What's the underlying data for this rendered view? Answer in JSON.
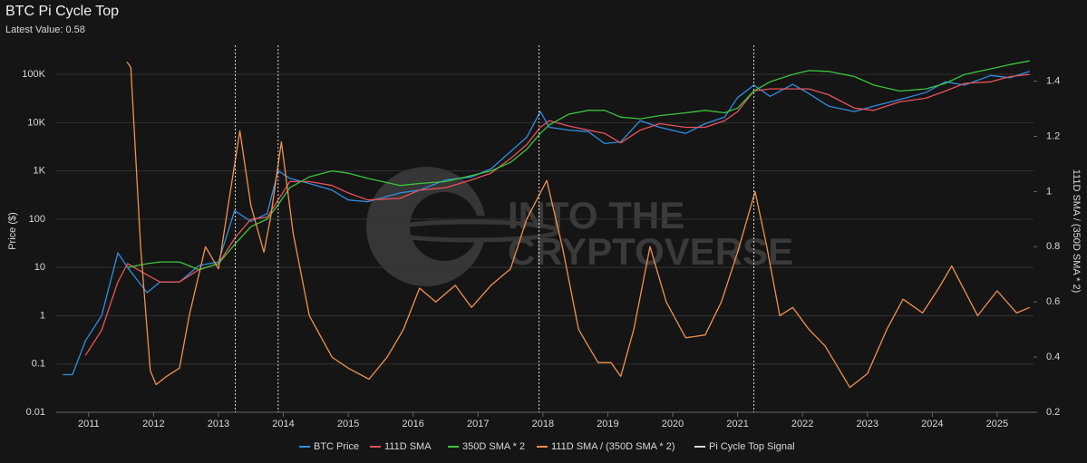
{
  "chart_data": {
    "type": "line",
    "title": "BTC Pi Cycle Top",
    "subtitle": "Latest Value: 0.58",
    "y_label": "Price ($)",
    "y2_label": "111D SMA / (350D SMA * 2)",
    "watermark": [
      "INTO THE",
      "CRYPTOVERSE"
    ],
    "log_y": true,
    "grid": true,
    "legend": "bottom",
    "xlim": [
      2010.5,
      2025.56
    ],
    "xticks": [
      2011,
      2012,
      2013,
      2014,
      2015,
      2016,
      2017,
      2018,
      2019,
      2020,
      2021,
      2022,
      2023,
      2024,
      2025
    ],
    "ylim": [
      0.01,
      400000
    ],
    "yticks": [
      0.01,
      0.1,
      1,
      10,
      100,
      {
        "value": 1000,
        "label": "1K"
      },
      {
        "value": 10000,
        "label": "10K"
      },
      {
        "value": 100000,
        "label": "100K"
      }
    ],
    "y2lim": [
      0.2,
      1.53
    ],
    "y2ticks": [
      0.2,
      0.4,
      0.6,
      0.8,
      1,
      1.2,
      1.4
    ],
    "series": [
      {
        "name": "BTC Price",
        "color": "#2f8ee0",
        "x": [
          2010.6,
          2010.75,
          2010.95,
          2011.2,
          2011.45,
          2011.6,
          2011.9,
          2012.1,
          2012.4,
          2012.7,
          2013.0,
          2013.25,
          2013.5,
          2013.75,
          2013.92,
          2014.1,
          2014.4,
          2014.75,
          2015.0,
          2015.3,
          2015.8,
          2016.1,
          2016.5,
          2016.9,
          2017.2,
          2017.5,
          2017.75,
          2017.96,
          2018.1,
          2018.4,
          2018.7,
          2018.95,
          2019.2,
          2019.5,
          2019.8,
          2020.2,
          2020.5,
          2020.8,
          2021.0,
          2021.25,
          2021.5,
          2021.85,
          2022.1,
          2022.4,
          2022.8,
          2023.1,
          2023.5,
          2023.9,
          2024.2,
          2024.5,
          2024.9,
          2025.2,
          2025.5
        ],
        "values": [
          0.06,
          0.06,
          0.3,
          1,
          20,
          10,
          3,
          5,
          5,
          11,
          13,
          150,
          90,
          130,
          1000,
          700,
          550,
          400,
          250,
          230,
          350,
          400,
          650,
          750,
          1100,
          2500,
          5000,
          17000,
          8000,
          7000,
          6500,
          3700,
          4000,
          11000,
          8000,
          6000,
          9500,
          13000,
          33000,
          60000,
          35000,
          62000,
          40000,
          22000,
          17000,
          22000,
          30000,
          42000,
          70000,
          60000,
          95000,
          85000,
          115000
        ]
      },
      {
        "name": "111D SMA",
        "color": "#e8525c",
        "x": [
          2010.95,
          2011.2,
          2011.45,
          2011.6,
          2011.9,
          2012.1,
          2012.4,
          2012.7,
          2013.0,
          2013.25,
          2013.5,
          2013.75,
          2013.92,
          2014.1,
          2014.4,
          2014.75,
          2015.0,
          2015.3,
          2015.8,
          2016.1,
          2016.5,
          2016.9,
          2017.2,
          2017.5,
          2017.75,
          2017.96,
          2018.1,
          2018.4,
          2018.7,
          2018.95,
          2019.2,
          2019.5,
          2019.8,
          2020.2,
          2020.5,
          2020.8,
          2021.0,
          2021.25,
          2021.5,
          2021.85,
          2022.1,
          2022.4,
          2022.8,
          2023.1,
          2023.5,
          2023.9,
          2024.2,
          2024.5,
          2024.9,
          2025.2,
          2025.5
        ],
        "values": [
          0.15,
          0.5,
          5,
          12,
          7,
          5,
          5,
          9,
          12,
          40,
          100,
          110,
          250,
          600,
          600,
          500,
          350,
          250,
          270,
          400,
          450,
          650,
          900,
          1800,
          3500,
          8000,
          11000,
          8500,
          7000,
          6000,
          3800,
          7000,
          9500,
          8000,
          8000,
          11000,
          17000,
          45000,
          50000,
          50000,
          50000,
          38000,
          20000,
          18000,
          27000,
          32000,
          45000,
          65000,
          70000,
          90000,
          100000
        ]
      },
      {
        "name": "350D SMA * 2",
        "color": "#3cc43c",
        "x": [
          2011.6,
          2011.9,
          2012.1,
          2012.4,
          2012.7,
          2013.0,
          2013.25,
          2013.5,
          2013.75,
          2013.92,
          2014.1,
          2014.4,
          2014.75,
          2015.0,
          2015.3,
          2015.8,
          2016.1,
          2016.5,
          2016.9,
          2017.2,
          2017.5,
          2017.75,
          2017.96,
          2018.1,
          2018.4,
          2018.7,
          2018.95,
          2019.2,
          2019.5,
          2019.8,
          2020.2,
          2020.5,
          2020.8,
          2021.0,
          2021.25,
          2021.5,
          2021.85,
          2022.1,
          2022.4,
          2022.8,
          2023.1,
          2023.5,
          2023.9,
          2024.2,
          2024.5,
          2024.9,
          2025.2,
          2025.5
        ],
        "values": [
          10,
          12,
          13,
          13,
          9,
          12,
          30,
          70,
          100,
          200,
          450,
          750,
          1000,
          900,
          700,
          500,
          550,
          600,
          800,
          1000,
          1500,
          2800,
          6000,
          9000,
          15000,
          18000,
          18000,
          13000,
          12000,
          14000,
          16000,
          18000,
          16000,
          20000,
          45000,
          70000,
          100000,
          120000,
          115000,
          90000,
          60000,
          45000,
          50000,
          65000,
          100000,
          130000,
          160000,
          190000
        ]
      },
      {
        "name": "111D SMA / (350D SMA * 2)",
        "color": "#f2904e",
        "axis": "y2",
        "x": [
          2011.59,
          2011.65,
          2011.8,
          2011.95,
          2012.04,
          2012.2,
          2012.4,
          2012.55,
          2012.8,
          2013.0,
          2013.15,
          2013.33,
          2013.5,
          2013.7,
          2013.8,
          2013.97,
          2014.15,
          2014.4,
          2014.75,
          2015.0,
          2015.32,
          2015.6,
          2015.85,
          2016.1,
          2016.35,
          2016.65,
          2016.9,
          2017.2,
          2017.5,
          2017.75,
          2018.06,
          2018.3,
          2018.55,
          2018.85,
          2019.05,
          2019.2,
          2019.4,
          2019.65,
          2019.9,
          2020.2,
          2020.5,
          2020.75,
          2021.0,
          2021.27,
          2021.45,
          2021.65,
          2021.85,
          2022.1,
          2022.35,
          2022.73,
          2023.0,
          2023.3,
          2023.55,
          2023.85,
          2024.1,
          2024.3,
          2024.7,
          2025.0,
          2025.3,
          2025.5
        ],
        "values": [
          1.47,
          1.45,
          0.8,
          0.35,
          0.3,
          0.33,
          0.36,
          0.55,
          0.8,
          0.72,
          0.95,
          1.22,
          0.95,
          0.78,
          0.9,
          1.18,
          0.85,
          0.55,
          0.4,
          0.36,
          0.32,
          0.4,
          0.5,
          0.65,
          0.6,
          0.66,
          0.58,
          0.66,
          0.72,
          0.9,
          1.04,
          0.8,
          0.5,
          0.38,
          0.38,
          0.33,
          0.5,
          0.8,
          0.6,
          0.47,
          0.48,
          0.6,
          0.78,
          1.0,
          0.8,
          0.55,
          0.58,
          0.5,
          0.44,
          0.29,
          0.34,
          0.5,
          0.61,
          0.56,
          0.65,
          0.73,
          0.55,
          0.64,
          0.56,
          0.58
        ]
      },
      {
        "name": "Pi Cycle Top Signal",
        "color": "#d8d8d8",
        "style": "signal",
        "x": [
          2013.26,
          2013.92,
          2017.94,
          2021.25
        ]
      }
    ]
  }
}
